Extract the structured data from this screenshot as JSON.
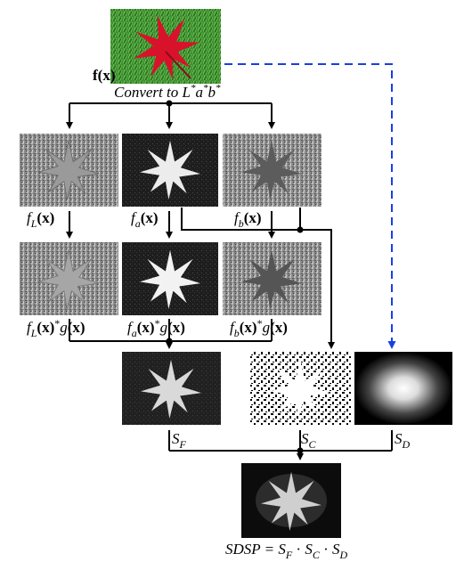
{
  "input": {
    "label_main": "f",
    "label_arg": "(x)",
    "convert_prefix": "Convert to L",
    "convert_star1": "*",
    "convert_a": "a",
    "convert_star2": "*",
    "convert_b": "b",
    "convert_star3": "*"
  },
  "channels": [
    {
      "f": "f",
      "sub": "L",
      "arg": "(x)"
    },
    {
      "f": "f",
      "sub": "a",
      "arg": "(x)"
    },
    {
      "f": "f",
      "sub": "b",
      "arg": "(x)"
    }
  ],
  "filtered": [
    {
      "f": "f",
      "sub": "L",
      "arg": "(x)",
      "op": "*",
      "g": "g",
      "garg": "(x)"
    },
    {
      "f": "f",
      "sub": "a",
      "arg": "(x)",
      "op": "*",
      "g": "g",
      "garg": "(x)"
    },
    {
      "f": "f",
      "sub": "b",
      "arg": "(x)",
      "op": "*",
      "g": "g",
      "garg": "(x)"
    }
  ],
  "priors": [
    {
      "s": "S",
      "sub": "F"
    },
    {
      "s": "S",
      "sub": "C"
    },
    {
      "s": "S",
      "sub": "D"
    }
  ],
  "output": {
    "lhs": "SDSP = ",
    "t1": "S",
    "t1sub": "F",
    "dot1": " · ",
    "t2": "S",
    "t2sub": "C",
    "dot2": " · ",
    "t3": "S",
    "t3sub": "D"
  },
  "colors": {
    "line": "#000000",
    "dashed": "#1a3fe0",
    "grass": "#3e8f34",
    "leaf": "#d8122a"
  }
}
